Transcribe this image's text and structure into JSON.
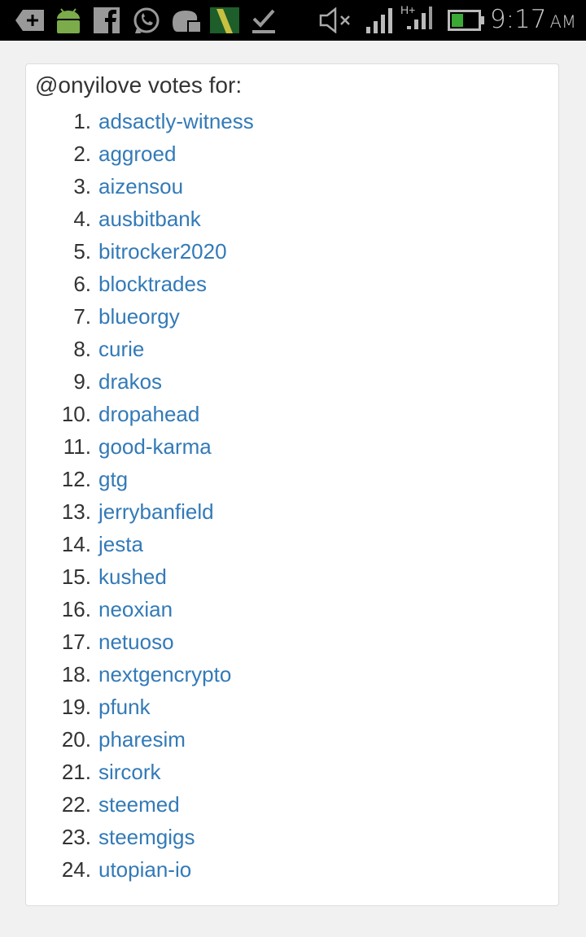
{
  "status_bar": {
    "time": "9:17",
    "ampm": "AM",
    "icons": [
      "add-notification-icon",
      "android-icon",
      "facebook-icon",
      "whatsapp-icon",
      "chat-icon",
      "n-app-icon",
      "download-done-icon",
      "mute-icon",
      "signal-icon",
      "hplus-signal-icon",
      "battery-icon"
    ],
    "battery_level_percent": 40,
    "colors": {
      "battery": "#3aa935",
      "android": "#7cab4c"
    }
  },
  "card": {
    "title": "@onyilove votes for:",
    "link_color": "#337ab7",
    "items": [
      {
        "num": "1.",
        "name": "adsactly-witness"
      },
      {
        "num": "2.",
        "name": "aggroed"
      },
      {
        "num": "3.",
        "name": "aizensou"
      },
      {
        "num": "4.",
        "name": "ausbitbank"
      },
      {
        "num": "5.",
        "name": "bitrocker2020"
      },
      {
        "num": "6.",
        "name": "blocktrades"
      },
      {
        "num": "7.",
        "name": "blueorgy"
      },
      {
        "num": "8.",
        "name": "curie"
      },
      {
        "num": "9.",
        "name": "drakos"
      },
      {
        "num": "10.",
        "name": "dropahead"
      },
      {
        "num": "11.",
        "name": "good-karma"
      },
      {
        "num": "12.",
        "name": "gtg"
      },
      {
        "num": "13.",
        "name": "jerrybanfield"
      },
      {
        "num": "14.",
        "name": "jesta"
      },
      {
        "num": "15.",
        "name": "kushed"
      },
      {
        "num": "16.",
        "name": "neoxian"
      },
      {
        "num": "17.",
        "name": "netuoso"
      },
      {
        "num": "18.",
        "name": "nextgencrypto"
      },
      {
        "num": "19.",
        "name": "pfunk"
      },
      {
        "num": "20.",
        "name": "pharesim"
      },
      {
        "num": "21.",
        "name": "sircork"
      },
      {
        "num": "22.",
        "name": "steemed"
      },
      {
        "num": "23.",
        "name": "steemgigs"
      },
      {
        "num": "24.",
        "name": "utopian-io"
      }
    ]
  }
}
